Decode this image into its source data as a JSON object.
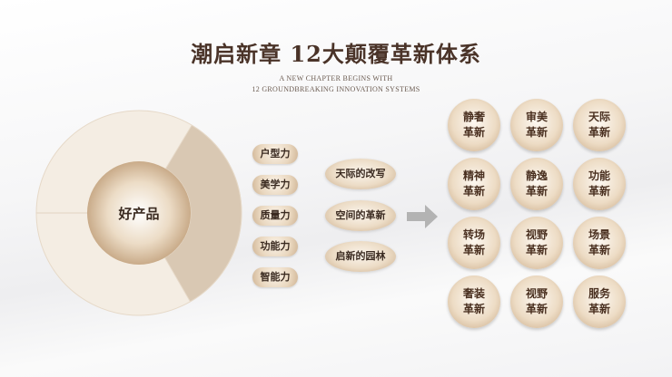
{
  "title": "潮启新章 12大颠覆革新体系",
  "subtitle_line1": "A NEW CHAPTER BEGINS WITH",
  "subtitle_line2": "12 GROUNDBREAKING INNOVATION SYSTEMS",
  "center": "好产品",
  "powers": [
    "户型力",
    "美学力",
    "质量力",
    "功能力",
    "智能力"
  ],
  "changes": [
    "天际的改写",
    "空间的革新",
    "启新的园林"
  ],
  "innovations": [
    [
      "静奢",
      "革新"
    ],
    [
      "审美",
      "革新"
    ],
    [
      "天际",
      "革新"
    ],
    [
      "精神",
      "革新"
    ],
    [
      "静逸",
      "革新"
    ],
    [
      "功能",
      "革新"
    ],
    [
      "转场",
      "革新"
    ],
    [
      "视野",
      "革新"
    ],
    [
      "场景",
      "革新"
    ],
    [
      "奢装",
      "革新"
    ],
    [
      "视野",
      "革新"
    ],
    [
      "服务",
      "革新"
    ]
  ],
  "colors": {
    "title": "#4a3328",
    "ring_light": "#f3ebe0",
    "ring_dark": "#d8c6b0"
  }
}
